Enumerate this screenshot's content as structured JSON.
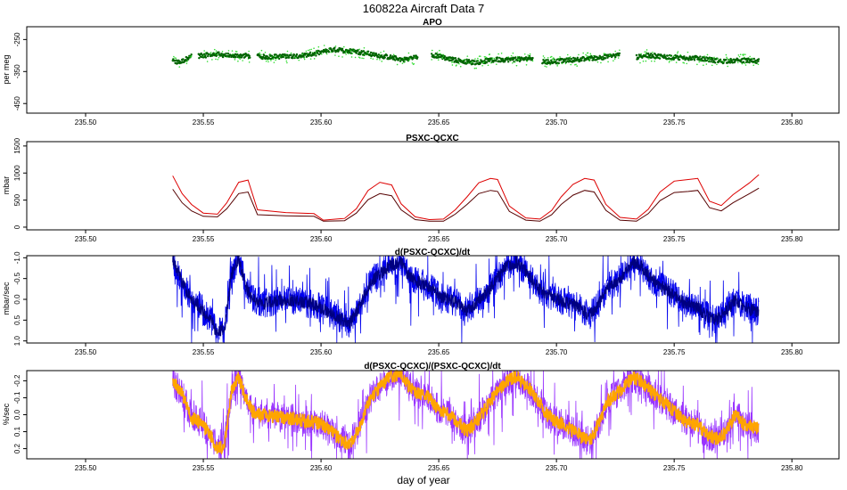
{
  "figure": {
    "title": "160822a   Aircraft Data 7",
    "xlabel": "day of year"
  },
  "chart_data": [
    {
      "type": "scatter",
      "title": "APO",
      "ylabel": "per meg",
      "xlim": [
        235.475,
        235.82
      ],
      "ylim": [
        -480,
        -210
      ],
      "yreversed": false,
      "yticks": [
        -250,
        -350,
        -450
      ],
      "ytick_labels": [
        "-250",
        "-350",
        "-450"
      ],
      "xticks": [
        235.5,
        235.55,
        235.6,
        235.65,
        235.7,
        235.75,
        235.8
      ],
      "xtick_labels": [
        "235.50",
        "235.55",
        "235.60",
        "235.65",
        "235.70",
        "235.75",
        "235.80"
      ],
      "colors": {
        "primary": "#006400",
        "secondary": "#33dd33"
      },
      "segments": [
        [
          235.537,
          235.545
        ],
        [
          235.548,
          235.57
        ],
        [
          235.573,
          235.641
        ],
        [
          235.647,
          235.69
        ],
        [
          235.694,
          235.727
        ],
        [
          235.734,
          235.786
        ]
      ],
      "series": [
        {
          "x": [
            235.537,
            235.54,
            235.543,
            235.545,
            235.55,
            235.556,
            235.562,
            235.568,
            235.575,
            235.585,
            235.595,
            235.605,
            235.615,
            235.625,
            235.635,
            235.641,
            235.647,
            235.655,
            235.665,
            235.675,
            235.685,
            235.69,
            235.694,
            235.7,
            235.71,
            235.72,
            235.727,
            235.734,
            235.74,
            235.75,
            235.76,
            235.77,
            235.78,
            235.786
          ],
          "values": [
            -318,
            -322,
            -310,
            -303,
            -300,
            -296,
            -302,
            -300,
            -304,
            -303,
            -298,
            -282,
            -288,
            -300,
            -313,
            -305,
            -297,
            -312,
            -322,
            -313,
            -312,
            -306,
            -320,
            -318,
            -312,
            -305,
            -298,
            -305,
            -300,
            -306,
            -308,
            -318,
            -315,
            -318
          ]
        }
      ]
    },
    {
      "type": "line",
      "title": "PSXC-QCXC",
      "ylabel": "mbar",
      "xlim": [
        235.475,
        235.82
      ],
      "ylim": [
        -50,
        1580
      ],
      "yreversed": false,
      "yticks": [
        0,
        500,
        1000,
        1500
      ],
      "ytick_labels": [
        "0",
        "500",
        "1000",
        "1500"
      ],
      "xticks": [
        235.5,
        235.55,
        235.6,
        235.65,
        235.7,
        235.75,
        235.8
      ],
      "xtick_labels": [
        "235.50",
        "235.55",
        "235.60",
        "235.65",
        "235.70",
        "235.75",
        "235.80"
      ],
      "colors": {
        "primary": "#dd0000",
        "secondary": "#550000"
      },
      "series": [
        {
          "x": [
            235.537,
            235.541,
            235.545,
            235.55,
            235.556,
            235.56,
            235.565,
            235.569,
            235.573,
            235.585,
            235.597,
            235.601,
            235.61,
            235.615,
            235.62,
            235.625,
            235.63,
            235.634,
            235.64,
            235.646,
            235.652,
            235.657,
            235.662,
            235.667,
            235.672,
            235.675,
            235.68,
            235.687,
            235.693,
            235.698,
            235.702,
            235.707,
            235.712,
            235.716,
            235.721,
            235.727,
            235.734,
            235.739,
            235.744,
            235.75,
            235.756,
            235.76,
            235.765,
            235.77,
            235.775,
            235.782,
            235.786
          ],
          "values": [
            950,
            620,
            420,
            260,
            240,
            450,
            830,
            870,
            320,
            270,
            250,
            130,
            160,
            340,
            680,
            830,
            780,
            430,
            190,
            140,
            150,
            320,
            560,
            820,
            900,
            880,
            390,
            170,
            150,
            310,
            560,
            790,
            900,
            870,
            420,
            180,
            150,
            330,
            650,
            850,
            880,
            900,
            480,
            400,
            600,
            820,
            970
          ]
        },
        {
          "x": [
            235.537,
            235.541,
            235.545,
            235.55,
            235.556,
            235.56,
            235.565,
            235.569,
            235.573,
            235.585,
            235.597,
            235.601,
            235.61,
            235.615,
            235.62,
            235.625,
            235.63,
            235.634,
            235.64,
            235.646,
            235.652,
            235.657,
            235.662,
            235.667,
            235.672,
            235.675,
            235.68,
            235.687,
            235.693,
            235.698,
            235.702,
            235.707,
            235.712,
            235.716,
            235.721,
            235.727,
            235.734,
            235.739,
            235.744,
            235.75,
            235.756,
            235.76,
            235.765,
            235.77,
            235.775,
            235.782,
            235.786
          ],
          "values": [
            700,
            450,
            300,
            200,
            190,
            340,
            620,
            650,
            230,
            210,
            200,
            110,
            120,
            260,
            510,
            620,
            580,
            320,
            140,
            110,
            110,
            240,
            420,
            620,
            680,
            660,
            290,
            130,
            110,
            230,
            420,
            590,
            680,
            650,
            310,
            130,
            110,
            250,
            490,
            640,
            660,
            680,
            360,
            300,
            450,
            620,
            720
          ]
        }
      ]
    },
    {
      "type": "line",
      "title": "d(PSXC-QCXC)/dt",
      "ylabel": "mbar/sec",
      "xlim": [
        235.475,
        235.82
      ],
      "ylim": [
        -1.05,
        1.05
      ],
      "yreversed": true,
      "yticks": [
        -1.0,
        -0.5,
        0.0,
        0.5,
        1.0
      ],
      "ytick_labels": [
        "-1.0",
        "-0.5",
        "0.0",
        "0.5",
        "1.0"
      ],
      "xticks": [
        235.5,
        235.55,
        235.6,
        235.65,
        235.7,
        235.75,
        235.8
      ],
      "xtick_labels": [
        "235.50",
        "235.55",
        "235.60",
        "235.65",
        "235.70",
        "235.75",
        "235.80"
      ],
      "colors": {
        "primary": "#0000ee",
        "secondary": "#000080"
      },
      "series": [
        {
          "x": [
            235.537,
            235.541,
            235.545,
            235.549,
            235.553,
            235.556,
            235.559,
            235.562,
            235.565,
            235.568,
            235.571,
            235.575,
            235.585,
            235.595,
            235.6,
            235.606,
            235.612,
            235.617,
            235.621,
            235.625,
            235.629,
            235.634,
            235.638,
            235.642,
            235.646,
            235.65,
            235.654,
            235.658,
            235.662,
            235.667,
            235.671,
            235.675,
            235.679,
            235.683,
            235.688,
            235.692,
            235.696,
            235.7,
            235.705,
            235.71,
            235.714,
            235.718,
            235.722,
            235.727,
            235.732,
            235.736,
            235.74,
            235.745,
            235.75,
            235.755,
            235.76,
            235.764,
            235.768,
            235.772,
            235.776,
            235.78,
            235.786
          ],
          "values": [
            -1.0,
            -0.4,
            0.0,
            0.2,
            0.5,
            0.8,
            0.7,
            -0.6,
            -1.0,
            -0.3,
            0.0,
            0.1,
            0.0,
            0.1,
            0.2,
            0.4,
            0.6,
            0.1,
            -0.4,
            -0.6,
            -0.8,
            -0.9,
            -0.5,
            -0.4,
            -0.3,
            -0.1,
            0.0,
            0.1,
            0.3,
            0.0,
            -0.2,
            -0.5,
            -0.8,
            -0.9,
            -0.6,
            -0.3,
            -0.1,
            0.0,
            0.1,
            0.2,
            0.4,
            0.1,
            -0.3,
            -0.5,
            -0.9,
            -0.8,
            -0.5,
            -0.3,
            -0.1,
            0.1,
            0.2,
            0.4,
            0.5,
            0.3,
            0.0,
            0.2,
            0.3
          ]
        }
      ]
    },
    {
      "type": "line",
      "title": "d(PSXC-QCXC)/(PSXC-QCXC)/dt",
      "ylabel": "%/sec",
      "xlim": [
        235.475,
        235.82
      ],
      "ylim": [
        -0.26,
        0.26
      ],
      "yreversed": true,
      "yticks": [
        -0.2,
        -0.1,
        0.0,
        0.1,
        0.2
      ],
      "ytick_labels": [
        "-0.2",
        "-0.1",
        "0.0",
        "0.1",
        "0.2"
      ],
      "xticks": [
        235.5,
        235.55,
        235.6,
        235.65,
        235.7,
        235.75,
        235.8
      ],
      "xtick_labels": [
        "235.50",
        "235.55",
        "235.60",
        "235.65",
        "235.70",
        "235.75",
        "235.80"
      ],
      "colors": {
        "primary": "#9933ff",
        "secondary": "#ffa500"
      },
      "series": [
        {
          "x": [
            235.537,
            235.541,
            235.545,
            235.549,
            235.553,
            235.556,
            235.559,
            235.562,
            235.565,
            235.568,
            235.571,
            235.575,
            235.585,
            235.595,
            235.6,
            235.606,
            235.612,
            235.617,
            235.621,
            235.625,
            235.629,
            235.634,
            235.638,
            235.642,
            235.646,
            235.65,
            235.654,
            235.658,
            235.662,
            235.667,
            235.671,
            235.675,
            235.679,
            235.683,
            235.688,
            235.692,
            235.696,
            235.7,
            235.705,
            235.71,
            235.714,
            235.718,
            235.722,
            235.727,
            235.732,
            235.736,
            235.74,
            235.745,
            235.75,
            235.755,
            235.76,
            235.764,
            235.768,
            235.772,
            235.776,
            235.78,
            235.786
          ],
          "values": [
            -0.2,
            -0.12,
            0.02,
            0.05,
            0.12,
            0.2,
            0.18,
            -0.15,
            -0.22,
            -0.1,
            -0.02,
            0.0,
            0.02,
            0.04,
            0.05,
            0.12,
            0.18,
            0.05,
            -0.1,
            -0.16,
            -0.22,
            -0.24,
            -0.15,
            -0.12,
            -0.1,
            -0.03,
            0.0,
            0.04,
            0.1,
            0.02,
            -0.06,
            -0.14,
            -0.2,
            -0.22,
            -0.16,
            -0.08,
            0.0,
            0.04,
            0.08,
            0.12,
            0.16,
            0.05,
            -0.08,
            -0.14,
            -0.22,
            -0.2,
            -0.14,
            -0.08,
            -0.02,
            0.04,
            0.06,
            0.12,
            0.14,
            0.1,
            0.0,
            0.06,
            0.08
          ]
        }
      ]
    }
  ]
}
